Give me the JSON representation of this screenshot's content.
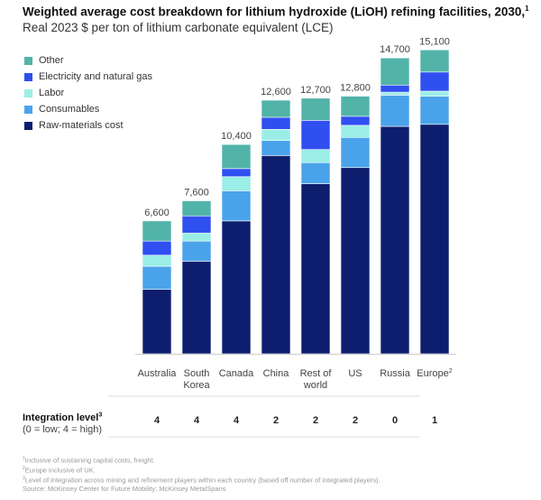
{
  "chart_data": {
    "type": "bar",
    "stacked": true,
    "title": "Weighted average cost breakdown for lithium hydroxide (LiOH) refining facilities, 2030,",
    "title_footnote": "1",
    "subtitle": "Real 2023 $ per ton of lithium carbonate equivalent (LCE)",
    "legend_position": "top-left",
    "categories": [
      "Australia",
      "South Korea",
      "Canada",
      "China",
      "Rest of world",
      "US",
      "Russia",
      "Europe"
    ],
    "category_lines": [
      [
        "Australia"
      ],
      [
        "South",
        "Korea"
      ],
      [
        "Canada"
      ],
      [
        "China"
      ],
      [
        "Rest of",
        "world"
      ],
      [
        "US"
      ],
      [
        "Russia"
      ],
      [
        "Europe"
      ]
    ],
    "category_footnotes": [
      "",
      "",
      "",
      "",
      "",
      "",
      "",
      "2"
    ],
    "totals": [
      "6,600",
      "7,600",
      "10,400",
      "12,600",
      "12,700",
      "12,800",
      "14,700",
      "15,100"
    ],
    "series": [
      {
        "name": "Raw-materials cost",
        "color": "#0e1e6e",
        "values": [
          3200,
          4600,
          6600,
          9850,
          8450,
          9250,
          11300,
          11400
        ]
      },
      {
        "name": "Consumables",
        "color": "#4aa3ea",
        "values": [
          1150,
          1000,
          1500,
          750,
          1050,
          1500,
          1550,
          1400
        ]
      },
      {
        "name": "Labor",
        "color": "#9aeee6",
        "values": [
          550,
          400,
          700,
          550,
          650,
          600,
          150,
          250
        ]
      },
      {
        "name": "Electricity and natural gas",
        "color": "#2f4ff0",
        "values": [
          700,
          850,
          400,
          600,
          1450,
          450,
          350,
          950
        ]
      },
      {
        "name": "Other",
        "color": "#52b3a8",
        "values": [
          1000,
          750,
          1200,
          850,
          1100,
          1000,
          1350,
          1100
        ]
      }
    ],
    "legend_order": [
      "Other",
      "Electricity and natural gas",
      "Labor",
      "Consumables",
      "Raw-materials cost"
    ],
    "ylim": [
      0,
      16000
    ],
    "grid": false
  },
  "integration": {
    "label": "Integration level",
    "label_footnote": "3",
    "sublabel": "(0 = low; 4 = high)",
    "values": [
      "4",
      "4",
      "4",
      "2",
      "2",
      "2",
      "0",
      "1"
    ]
  },
  "footnotes": [
    {
      "mark": "1",
      "text": "Inclusive of sustaining capital costs, freight."
    },
    {
      "mark": "2",
      "text": "Europe inclusive of UK."
    },
    {
      "mark": "3",
      "text": "Level of integration across mining and refinement players within each country (based off number of integrated players)."
    },
    {
      "mark": "",
      "text": " Source: McKinsey Center for Future Mobility; McKinsey MetalSpans"
    }
  ]
}
